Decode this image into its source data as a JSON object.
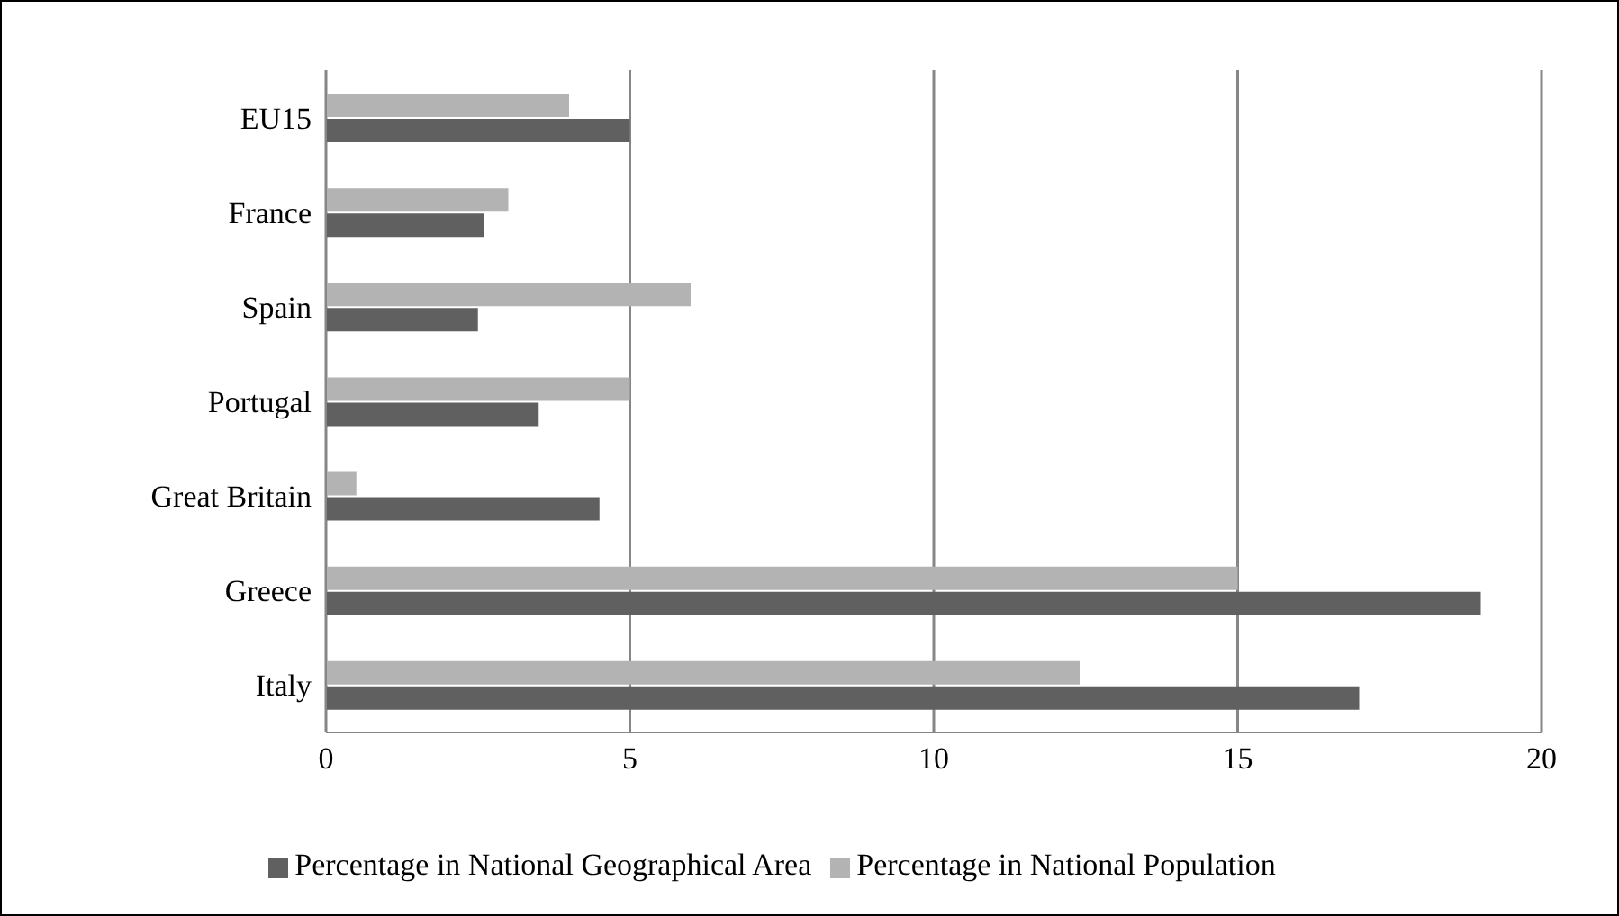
{
  "chart_data": {
    "type": "bar",
    "orientation": "horizontal",
    "categories": [
      "EU15",
      "France",
      "Spain",
      "Portugal",
      "Great Britain",
      "Greece",
      "Italy"
    ],
    "series": [
      {
        "name": "Percentage in National Population",
        "color": "#b3b3b3",
        "values": [
          4.0,
          3.0,
          6.0,
          5.0,
          0.5,
          15.0,
          12.4
        ]
      },
      {
        "name": "Percentage in National Geographical Area",
        "color": "#606060",
        "values": [
          5.0,
          2.6,
          2.5,
          3.5,
          4.5,
          19.0,
          17.0
        ]
      }
    ],
    "xlim": [
      0,
      20
    ],
    "xticks": [
      0,
      5,
      10,
      15,
      20
    ],
    "grid": "x",
    "legend": "bottom"
  }
}
